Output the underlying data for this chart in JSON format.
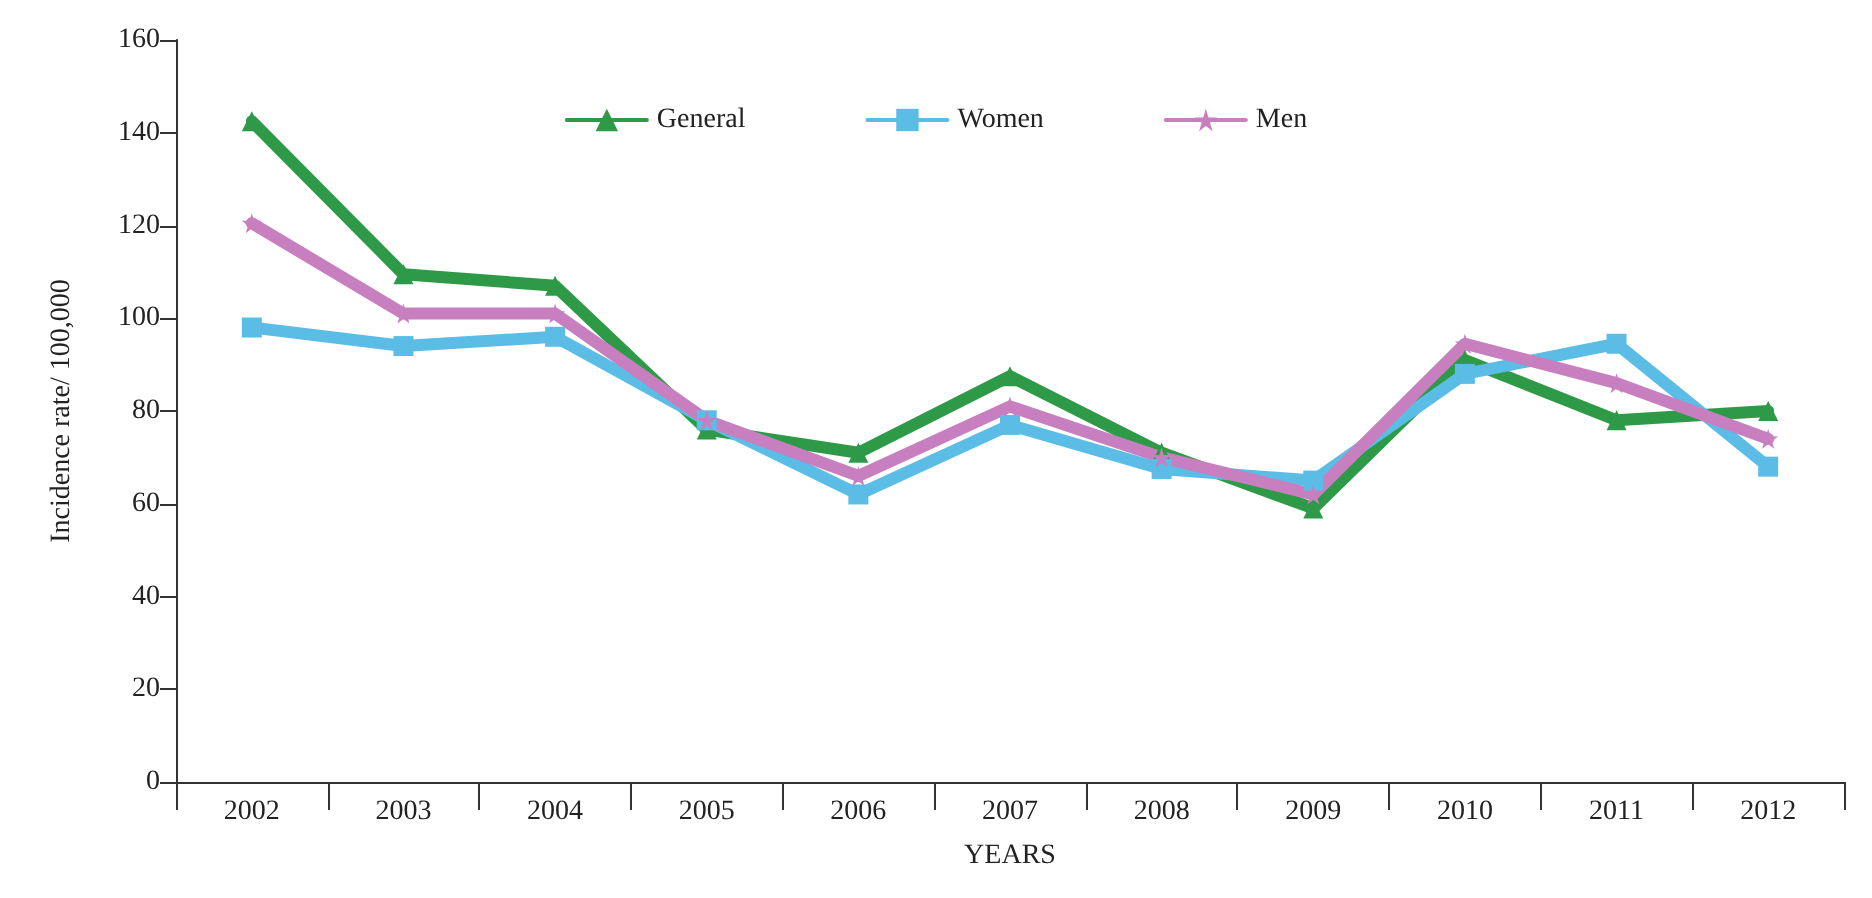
{
  "chart_data": {
    "type": "line",
    "xlabel": "YEARS",
    "ylabel": "Incidence rate/ 100,000",
    "categories": [
      "2002",
      "2003",
      "2004",
      "2005",
      "2006",
      "2007",
      "2008",
      "2009",
      "2010",
      "2011",
      "2012"
    ],
    "series": [
      {
        "name": "General",
        "color": "#2e9a47",
        "marker": "triangle",
        "values": [
          142.5,
          109.5,
          107,
          76,
          71,
          87.5,
          71,
          59,
          91,
          78,
          80
        ]
      },
      {
        "name": "Women",
        "color": "#5bbde6",
        "marker": "square",
        "values": [
          98,
          94,
          96,
          78,
          62,
          77,
          67.5,
          65,
          88,
          94.5,
          68
        ]
      },
      {
        "name": "Men",
        "color": "#c77fbf",
        "marker": "star",
        "values": [
          120.5,
          101,
          101,
          78,
          66,
          81,
          70,
          62,
          94.5,
          86,
          74
        ]
      }
    ],
    "ylim": [
      0,
      160
    ],
    "yticks": [
      0,
      20,
      40,
      60,
      80,
      100,
      120,
      140,
      160
    ],
    "grid": false,
    "legend": "top",
    "line_style": "solid"
  }
}
